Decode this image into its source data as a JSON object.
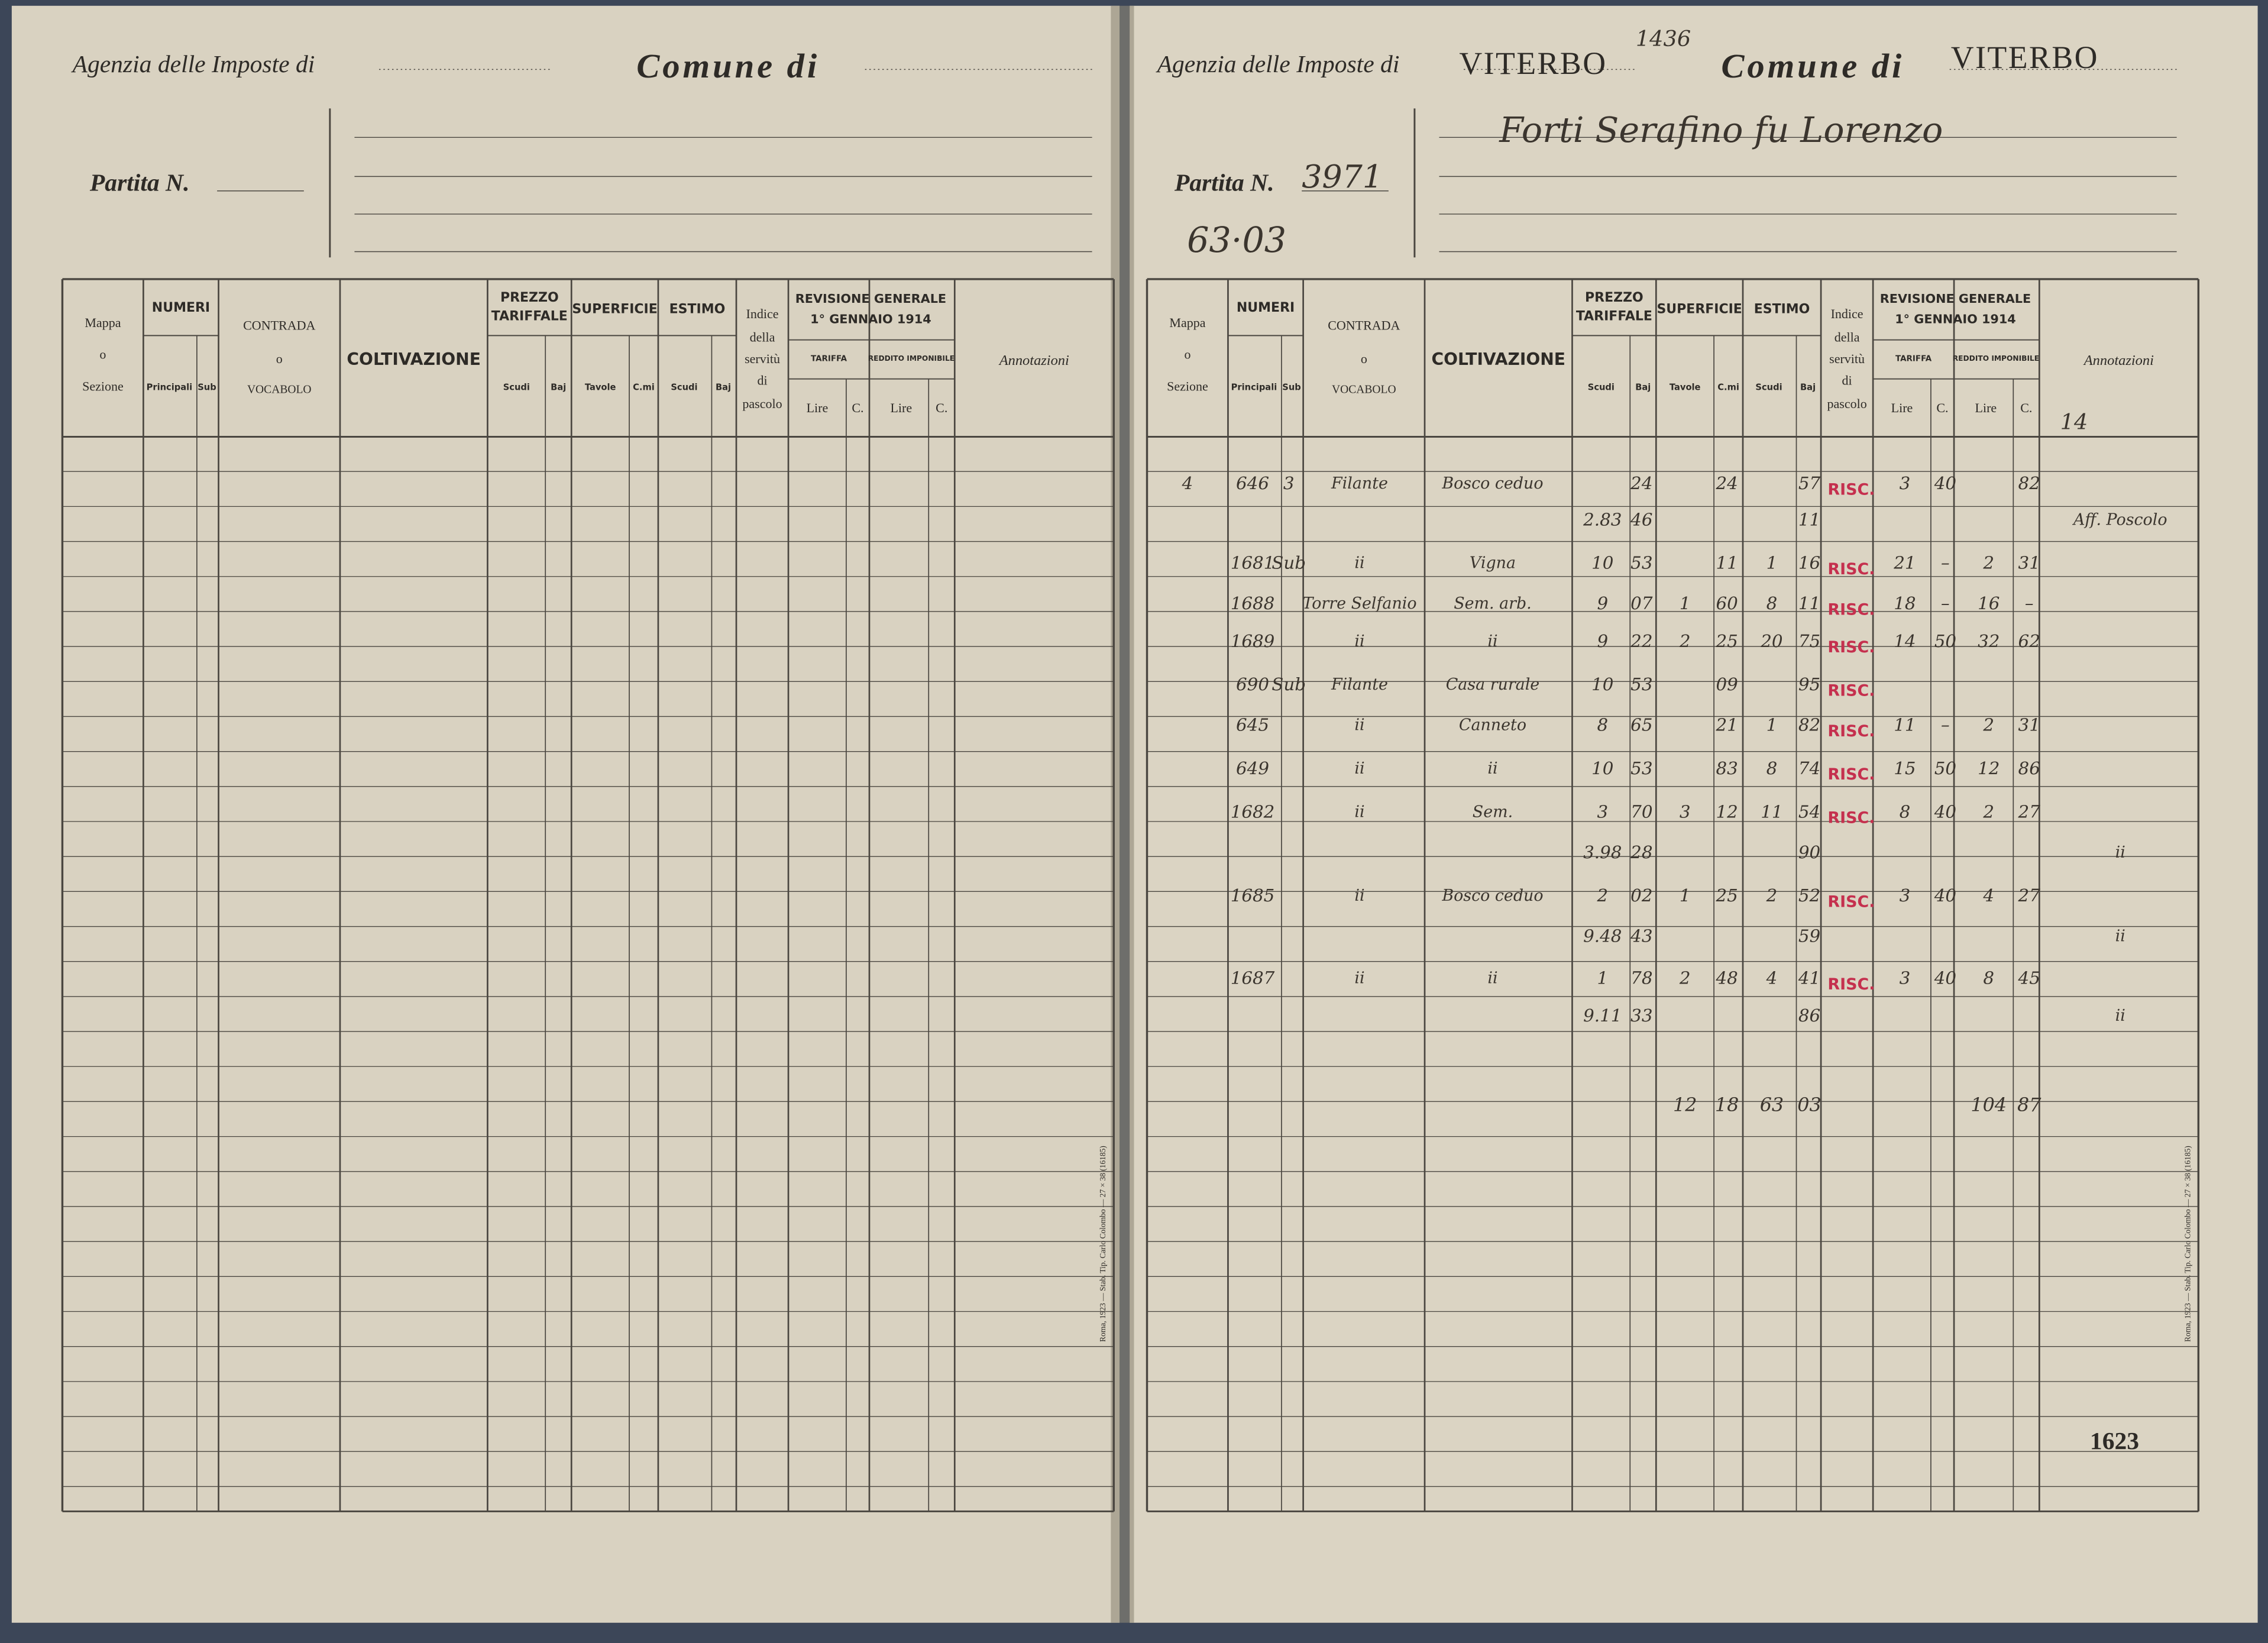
{
  "form": {
    "agency_label": "Agenzia delle Imposte di",
    "comune_label": "Comune di",
    "partita_label": "Partita N.",
    "mappa": [
      "Mappa",
      "o",
      "Sezione"
    ],
    "numeri": "NUMERI",
    "principali": "Principali",
    "sub": "Sub",
    "contrada": [
      "CONTRADA",
      "o",
      "VOCABOLO"
    ],
    "coltivazione": "COLTIVAZIONE",
    "prezzo": [
      "PREZZO",
      "TARIFFALE"
    ],
    "scudi": "Scudi",
    "baj": "Baj",
    "superficie": "SUPERFICIE",
    "tavole": "Tavole",
    "cmi": "C.mi",
    "estimo": "ESTIMO",
    "indice": [
      "Indice",
      "della",
      "servitù",
      "di",
      "pascolo"
    ],
    "revisione": [
      "REVISIONE GENERALE",
      "1° GENNAIO 1914"
    ],
    "tariffa": "TARIFFA",
    "reddito": "REDDITO IMPONIBILE",
    "lire": "Lire",
    "c": "C.",
    "annotazioni": "Annotazioni",
    "imprint": "Roma, 1923 — Stab. Tip. Carlo Colombo — 27 × 38 (16185)"
  },
  "right_page": {
    "agency_value": "VITERBO",
    "register_number": "1436",
    "comune_value": "VITERBO",
    "owner": "Forti Serafino fu Lorenzo",
    "partita_value": "3971",
    "note": "63·03",
    "sheet_note": "14",
    "page_number": "1623",
    "rows": [
      {
        "mappa": "4",
        "principali": "646",
        "sub": "3",
        "contrada": "Filante",
        "coltivazione": "Bosco ceduo",
        "prezzo_baj": "24",
        "superficie_cmi": "24",
        "estimo_baj": "57",
        "stamp": "RISC.",
        "tariffa_lire": "3",
        "tariffa_c": "40",
        "reddito_c": "82"
      },
      {
        "prezzo_scudi": "2.83",
        "prezzo_baj": "46",
        "estimo_baj": "11",
        "annotazioni": "Aff. Poscolo"
      },
      {
        "principali": "1681",
        "sub": "Sub",
        "contrada": "ii",
        "coltivazione": "Vigna",
        "prezzo_scudi": "10",
        "prezzo_baj": "53",
        "superficie_cmi": "11",
        "estimo_scudi": "1",
        "estimo_baj": "16",
        "stamp": "RISC.",
        "tariffa_lire": "21",
        "tariffa_c": "–",
        "reddito_lire": "2",
        "reddito_c": "31"
      },
      {
        "principali": "1688",
        "contrada": "Torre Selfanio",
        "coltivazione": "Sem. arb.",
        "prezzo_scudi": "9",
        "prezzo_baj": "07",
        "superficie_tavole": "1",
        "superficie_cmi": "60",
        "estimo_scudi": "8",
        "estimo_baj": "11",
        "stamp": "RISC.",
        "tariffa_lire": "18",
        "tariffa_c": "–",
        "reddito_lire": "16",
        "reddito_c": "–"
      },
      {
        "principali": "1689",
        "contrada": "ii",
        "coltivazione": "ii",
        "prezzo_scudi": "9",
        "prezzo_baj": "22",
        "superficie_tavole": "2",
        "superficie_cmi": "25",
        "estimo_scudi": "20",
        "estimo_baj": "75",
        "stamp": "RISC.",
        "tariffa_lire": "14",
        "tariffa_c": "50",
        "reddito_lire": "32",
        "reddito_c": "62"
      },
      {
        "principali": "690",
        "sub": "Sub",
        "contrada": "Filante",
        "coltivazione": "Casa rurale",
        "prezzo_scudi": "10",
        "prezzo_baj": "53",
        "superficie_cmi": "09",
        "estimo_baj": "95",
        "stamp": "RISC."
      },
      {
        "principali": "645",
        "contrada": "ii",
        "coltivazione": "Canneto",
        "prezzo_scudi": "8",
        "prezzo_baj": "65",
        "superficie_cmi": "21",
        "estimo_scudi": "1",
        "estimo_baj": "82",
        "stamp": "RISC.",
        "tariffa_lire": "11",
        "tariffa_c": "–",
        "reddito_lire": "2",
        "reddito_c": "31"
      },
      {
        "principali": "649",
        "contrada": "ii",
        "coltivazione": "ii",
        "prezzo_scudi": "10",
        "prezzo_baj": "53",
        "superficie_cmi": "83",
        "estimo_scudi": "8",
        "estimo_baj": "74",
        "stamp": "RISC.",
        "tariffa_lire": "15",
        "tariffa_c": "50",
        "reddito_lire": "12",
        "reddito_c": "86"
      },
      {
        "principali": "1682",
        "contrada": "ii",
        "coltivazione": "Sem.",
        "prezzo_scudi": "3",
        "prezzo_baj": "70",
        "superficie_tavole": "3",
        "superficie_cmi": "12",
        "estimo_scudi": "11",
        "estimo_baj": "54",
        "stamp": "RISC.",
        "tariffa_lire": "8",
        "tariffa_c": "40",
        "reddito_lire": "2",
        "reddito_c": "27"
      },
      {
        "prezzo_scudi": "3.98",
        "prezzo_baj": "28",
        "estimo_baj": "90",
        "annotazioni": "ii"
      },
      {
        "principali": "1685",
        "contrada": "ii",
        "coltivazione": "Bosco ceduo",
        "prezzo_scudi": "2",
        "prezzo_baj": "02",
        "superficie_tavole": "1",
        "superficie_cmi": "25",
        "estimo_scudi": "2",
        "estimo_baj": "52",
        "stamp": "RISC.",
        "tariffa_lire": "3",
        "tariffa_c": "40",
        "reddito_lire": "4",
        "reddito_c": "27"
      },
      {
        "prezzo_scudi": "9.48",
        "prezzo_baj": "43",
        "estimo_baj": "59",
        "annotazioni": "ii"
      },
      {
        "principali": "1687",
        "contrada": "ii",
        "coltivazione": "ii",
        "prezzo_scudi": "1",
        "prezzo_baj": "78",
        "superficie_tavole": "2",
        "superficie_cmi": "48",
        "estimo_scudi": "4",
        "estimo_baj": "41",
        "stamp": "RISC.",
        "tariffa_lire": "3",
        "tariffa_c": "40",
        "reddito_lire": "8",
        "reddito_c": "45"
      },
      {
        "prezzo_scudi": "9.11",
        "prezzo_baj": "33",
        "estimo_baj": "86",
        "annotazioni": "ii"
      }
    ],
    "totals": {
      "superficie_tavole": "12",
      "superficie_cmi": "18",
      "estimo_scudi": "63",
      "estimo_baj": "03",
      "reddito_lire": "104",
      "reddito_c": "87"
    }
  }
}
